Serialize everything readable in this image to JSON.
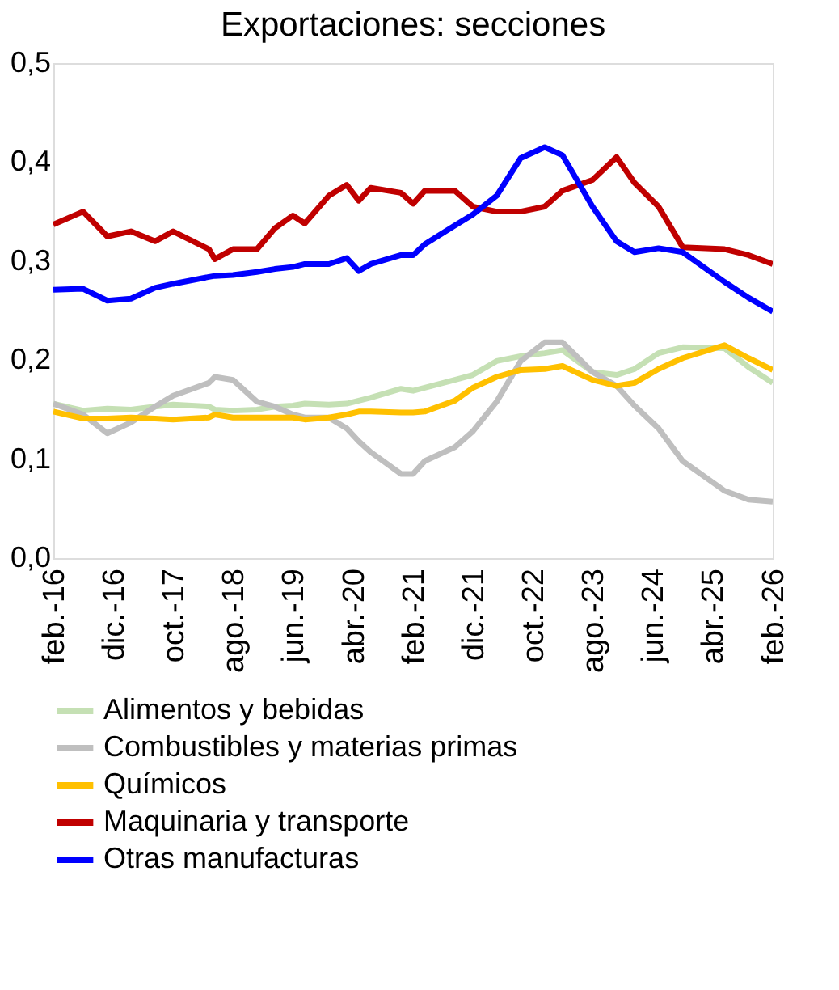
{
  "chart_data": {
    "type": "line",
    "title": "Exportaciones: secciones",
    "x": [
      "2016-02",
      "2016-07",
      "2016-11",
      "2017-03",
      "2017-07",
      "2017-10",
      "2018-04",
      "2018-05",
      "2018-08",
      "2018-12",
      "2019-03",
      "2019-06",
      "2019-08",
      "2019-12",
      "2020-03",
      "2020-05",
      "2020-07",
      "2020-12",
      "2021-02",
      "2021-04",
      "2021-09",
      "2021-12",
      "2022-04",
      "2022-08",
      "2022-12",
      "2023-03",
      "2023-08",
      "2023-12",
      "2024-03",
      "2024-07",
      "2024-11",
      "2025-06",
      "2025-10",
      "2026-02"
    ],
    "series": [
      {
        "name": "Alimentos y bebidas",
        "color": "#c5e0b4",
        "values": [
          0.156,
          0.149,
          0.151,
          0.15,
          0.153,
          0.155,
          0.153,
          0.15,
          0.149,
          0.15,
          0.153,
          0.154,
          0.156,
          0.155,
          0.156,
          0.159,
          0.162,
          0.171,
          0.169,
          0.172,
          0.18,
          0.185,
          0.199,
          0.204,
          0.207,
          0.21,
          0.188,
          0.185,
          0.191,
          0.207,
          0.213,
          0.212,
          0.193,
          0.177
        ]
      },
      {
        "name": "Combustibles y materias primas",
        "color": "#bfbfbf",
        "values": [
          0.156,
          0.145,
          0.126,
          0.137,
          0.153,
          0.164,
          0.177,
          0.183,
          0.18,
          0.158,
          0.153,
          0.145,
          0.142,
          0.142,
          0.131,
          0.118,
          0.107,
          0.085,
          0.085,
          0.098,
          0.112,
          0.128,
          0.158,
          0.199,
          0.218,
          0.218,
          0.188,
          0.174,
          0.154,
          0.131,
          0.098,
          0.068,
          0.059,
          0.057
        ]
      },
      {
        "name": "Químicos",
        "color": "#ffc000",
        "values": [
          0.148,
          0.141,
          0.141,
          0.142,
          0.141,
          0.14,
          0.142,
          0.145,
          0.142,
          0.142,
          0.142,
          0.142,
          0.14,
          0.142,
          0.145,
          0.148,
          0.148,
          0.147,
          0.147,
          0.148,
          0.159,
          0.172,
          0.183,
          0.19,
          0.191,
          0.194,
          0.18,
          0.174,
          0.177,
          0.191,
          0.202,
          0.215,
          0.202,
          0.19
        ]
      },
      {
        "name": "Maquinaria y transporte",
        "color": "#c00000",
        "values": [
          0.337,
          0.35,
          0.325,
          0.33,
          0.32,
          0.33,
          0.312,
          0.302,
          0.312,
          0.312,
          0.333,
          0.346,
          0.338,
          0.366,
          0.377,
          0.361,
          0.374,
          0.369,
          0.358,
          0.371,
          0.371,
          0.355,
          0.35,
          0.35,
          0.355,
          0.371,
          0.382,
          0.405,
          0.379,
          0.355,
          0.314,
          0.312,
          0.306,
          0.297
        ]
      },
      {
        "name": "Otras manufacturas",
        "color": "#0000ff",
        "values": [
          0.271,
          0.272,
          0.26,
          0.262,
          0.273,
          0.277,
          0.284,
          0.285,
          0.286,
          0.289,
          0.292,
          0.294,
          0.297,
          0.297,
          0.303,
          0.29,
          0.297,
          0.306,
          0.306,
          0.317,
          0.336,
          0.347,
          0.366,
          0.404,
          0.415,
          0.407,
          0.355,
          0.32,
          0.309,
          0.313,
          0.309,
          0.279,
          0.263,
          0.249
        ]
      }
    ],
    "xlim": [
      "2016-02",
      "2026-02"
    ],
    "xticks": [
      {
        "value": "2016-02",
        "label": "feb.-16"
      },
      {
        "value": "2016-12",
        "label": "dic.-16"
      },
      {
        "value": "2017-10",
        "label": "oct.-17"
      },
      {
        "value": "2018-08",
        "label": "ago.-18"
      },
      {
        "value": "2019-06",
        "label": "jun.-19"
      },
      {
        "value": "2020-04",
        "label": "abr.-20"
      },
      {
        "value": "2021-02",
        "label": "feb.-21"
      },
      {
        "value": "2021-12",
        "label": "dic.-21"
      },
      {
        "value": "2022-10",
        "label": "oct.-22"
      },
      {
        "value": "2023-08",
        "label": "ago.-23"
      },
      {
        "value": "2024-06",
        "label": "jun.-24"
      },
      {
        "value": "2025-04",
        "label": "abr.-25"
      },
      {
        "value": "2026-02",
        "label": "feb.-26"
      }
    ],
    "ylim": [
      0,
      0.5
    ],
    "yticks": [
      {
        "value": 0,
        "label": "0,0"
      },
      {
        "value": 0.1,
        "label": "0,1"
      },
      {
        "value": 0.2,
        "label": "0,2"
      },
      {
        "value": 0.3,
        "label": "0,3"
      },
      {
        "value": 0.4,
        "label": "0,4"
      },
      {
        "value": 0.5,
        "label": "0,5"
      }
    ],
    "grid": false,
    "legend": "bottom",
    "line_style": "solid",
    "marker": "none"
  }
}
